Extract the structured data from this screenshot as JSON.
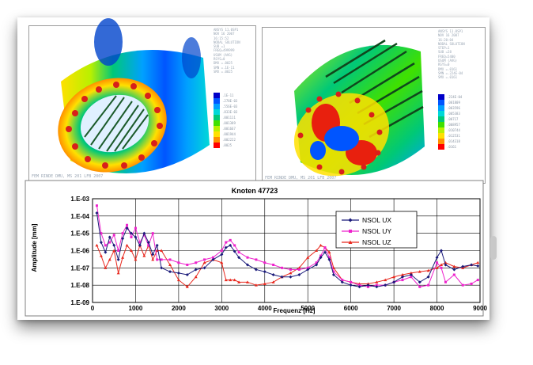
{
  "fea_left": {
    "legend_text": [
      "ANSYS 11.0SP1",
      "NOV 16 2007",
      "16:15:52",
      "NODAL SOLUTION",
      "SUB =1",
      "FREQ=499999",
      "USUM (AVG)",
      "RSYS=0",
      "DMX =.0025",
      "SMN =.1E-11",
      "SMX =.0025"
    ],
    "colorbar_labels": [
      ".1E-11",
      ".278E-03",
      ".556E-03",
      ".833E-03",
      ".001111",
      ".001389",
      ".001667",
      ".001944",
      ".002222",
      ".0025"
    ],
    "footer": "FEM RINDE DMU, MS 201 LFB 2007"
  },
  "fea_right": {
    "legend_text": [
      "ANSYS 11.0SP1",
      "NOV 16 2007",
      "16:20:04",
      "NODAL SOLUTION",
      "STEP=1",
      "SUB =28",
      "FREQ=5400",
      "USUM (AVG)",
      "RSYS=0",
      "DMX =.0161",
      "SMN =.224E-04",
      "SMX =.0161"
    ],
    "colorbar_labels": [
      ".224E-04",
      ".001809",
      ".003596",
      ".005383",
      ".00717",
      ".008957",
      ".010744",
      ".012531",
      ".014318",
      ".0161"
    ],
    "footer": "FEM RINDE DMU, MS 201 LFB 2007"
  },
  "colors": {
    "ux": "#1a1a7a",
    "uy": "#ee22cc",
    "uz": "#e8281e",
    "plot_bg": "#ffffff",
    "grid": "#000000",
    "fea_bands": [
      "#0000c8",
      "#0055ff",
      "#00a0ff",
      "#00d8d8",
      "#00c878",
      "#40e000",
      "#b8f000",
      "#ffe000",
      "#ff9000",
      "#ff0000"
    ]
  },
  "chart_data": {
    "type": "line",
    "title": "Knoten 47723",
    "xlabel": "Frequenz [Hz]",
    "ylabel": "Amplitude [mm]",
    "xlim": [
      0,
      9000
    ],
    "ylim_log10": [
      -9,
      -3
    ],
    "yscale": "log",
    "grid": true,
    "legend_position": "top-right",
    "x_ticks": [
      "0",
      "1000",
      "2000",
      "3000",
      "4000",
      "5000",
      "6000",
      "7000",
      "8000",
      "9000"
    ],
    "y_ticks": [
      "1.E-09",
      "1.E-08",
      "1.E-07",
      "1.E-06",
      "1.E-05",
      "1.E-04",
      "1.E-03"
    ],
    "x": [
      100,
      200,
      300,
      400,
      500,
      600,
      700,
      800,
      900,
      1000,
      1100,
      1200,
      1300,
      1400,
      1500,
      1600,
      1800,
      2000,
      2200,
      2400,
      2600,
      2800,
      3000,
      3100,
      3200,
      3300,
      3400,
      3600,
      3800,
      4000,
      4200,
      4400,
      4600,
      4800,
      5000,
      5200,
      5300,
      5400,
      5500,
      5600,
      5800,
      6000,
      6200,
      6400,
      6600,
      6800,
      7000,
      7200,
      7400,
      7600,
      7800,
      8000,
      8100,
      8200,
      8400,
      8600,
      8800,
      8950
    ],
    "series": [
      {
        "name": "NSOL UX",
        "marker": "diamond",
        "values": [
          0.00015,
          3e-06,
          8e-07,
          6e-06,
          2e-06,
          3e-07,
          5e-06,
          2e-05,
          1e-05,
          6e-06,
          2e-06,
          1e-05,
          3e-06,
          6e-07,
          2e-06,
          1e-07,
          6e-08,
          5e-08,
          4e-08,
          8e-08,
          1e-07,
          3e-07,
          6e-07,
          1.5e-06,
          2e-06,
          9e-07,
          4e-07,
          1.5e-07,
          8e-08,
          6e-08,
          4e-08,
          3e-08,
          3e-08,
          4e-08,
          8e-08,
          1.5e-07,
          4e-07,
          8e-07,
          3e-07,
          4e-08,
          1.5e-08,
          1e-08,
          8e-09,
          1e-08,
          8e-09,
          1e-08,
          1.5e-08,
          3e-08,
          4e-08,
          1.5e-08,
          3e-08,
          4e-07,
          1e-06,
          1.5e-07,
          8e-08,
          1.2e-07,
          1.5e-07,
          1.3e-07
        ]
      },
      {
        "name": "NSOL UY",
        "marker": "square",
        "values": [
          0.0004,
          1e-05,
          2e-06,
          3e-06,
          8e-06,
          1e-06,
          1e-05,
          3e-05,
          6e-06,
          2e-05,
          3e-06,
          8e-06,
          2e-06,
          1e-05,
          3e-07,
          3e-07,
          3e-07,
          2e-07,
          1.5e-07,
          2e-07,
          3e-07,
          4e-07,
          1e-06,
          3e-06,
          4e-06,
          2e-06,
          8e-07,
          4e-07,
          3e-07,
          2e-07,
          1.5e-07,
          1e-07,
          8e-08,
          8e-08,
          1e-07,
          2e-07,
          5e-07,
          1.5e-06,
          4e-07,
          6e-08,
          2e-08,
          1.5e-08,
          1e-08,
          8e-09,
          1e-08,
          1e-08,
          1.5e-08,
          2e-08,
          3e-08,
          8e-09,
          1e-08,
          2e-07,
          1e-07,
          1.5e-08,
          4e-08,
          1e-08,
          1.2e-08,
          2e-08
        ]
      },
      {
        "name": "NSOL UZ",
        "marker": "triangle",
        "values": [
          2e-06,
          5e-07,
          1e-07,
          3e-07,
          1e-06,
          5e-08,
          4e-07,
          2e-06,
          1e-06,
          3e-07,
          2e-06,
          5e-07,
          2e-06,
          3e-07,
          1e-06,
          1e-06,
          1.5e-07,
          2e-08,
          8e-09,
          3e-08,
          2e-07,
          3e-07,
          2e-07,
          2e-08,
          2e-08,
          2e-08,
          1.5e-08,
          1.5e-08,
          1e-08,
          1.2e-08,
          1.5e-08,
          3e-08,
          5e-08,
          1e-07,
          4e-07,
          1e-06,
          2e-06,
          1.5e-06,
          8e-07,
          1e-07,
          2e-08,
          1.5e-08,
          1.2e-08,
          1.2e-08,
          1.5e-08,
          2e-08,
          3e-08,
          4e-08,
          5e-08,
          6e-08,
          7e-08,
          1e-07,
          1.5e-07,
          2e-07,
          1.2e-07,
          1e-07,
          1.5e-07,
          2e-07
        ]
      }
    ]
  }
}
